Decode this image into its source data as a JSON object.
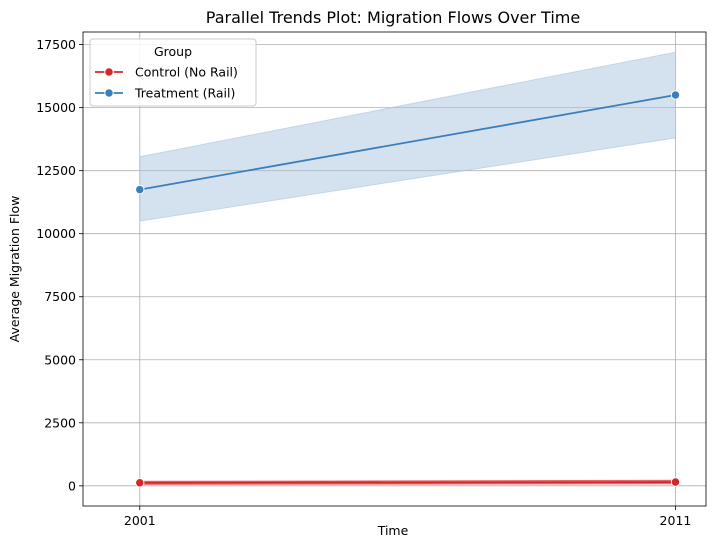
{
  "chart_data": {
    "type": "line",
    "title": "Parallel Trends Plot: Migration Flows Over Time",
    "xlabel": "Time",
    "ylabel": "Average Migration Flow",
    "x": [
      2001,
      2011
    ],
    "x_tick_labels": [
      "2001",
      "2011"
    ],
    "xlim": [
      1999.94,
      2011.57
    ],
    "ylim": [
      -800,
      18000
    ],
    "y_ticks": [
      0,
      2500,
      5000,
      7500,
      10000,
      12500,
      15000,
      17500
    ],
    "y_tick_labels": [
      "0",
      "2500",
      "5000",
      "7500",
      "10000",
      "12500",
      "15000",
      "17500"
    ],
    "grid": true,
    "legend": {
      "title": "Group",
      "placement": "top-left"
    },
    "series": [
      {
        "name": "Control (No Rail)",
        "color": "#d62728",
        "values": [
          120,
          150
        ],
        "ci_lower": [
          60,
          80
        ],
        "ci_upper": [
          180,
          220
        ],
        "marker": "circle"
      },
      {
        "name": "Treatment (Rail)",
        "color": "#3a7fbd",
        "band_color": "#a9c6e0",
        "values": [
          11750,
          15500
        ],
        "ci_lower": [
          10500,
          13800
        ],
        "ci_upper": [
          13050,
          17200
        ],
        "marker": "circle"
      }
    ]
  }
}
